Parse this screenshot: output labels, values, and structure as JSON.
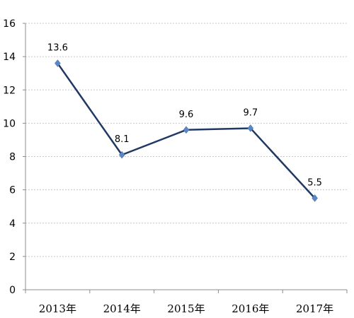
{
  "chart_data": {
    "type": "line",
    "categories": [
      "2013年",
      "2014年",
      "2015年",
      "2016年",
      "2017年"
    ],
    "series": [
      {
        "values": [
          13.6,
          8.1,
          9.6,
          9.7,
          5.5
        ]
      }
    ],
    "data_labels": [
      "13.6",
      "8.1",
      "9.6",
      "9.7",
      "5.5"
    ],
    "y_ticks": [
      "0",
      "2",
      "4",
      "6",
      "8",
      "10",
      "12",
      "14",
      "16"
    ],
    "ylim": [
      0,
      16
    ],
    "y_step": 2,
    "grid": true,
    "legend": "none",
    "colors": {
      "line": "#1f3864",
      "marker": "#5b87c5",
      "grid": "#c8c8c8",
      "axis": "#8c8c8c"
    }
  }
}
